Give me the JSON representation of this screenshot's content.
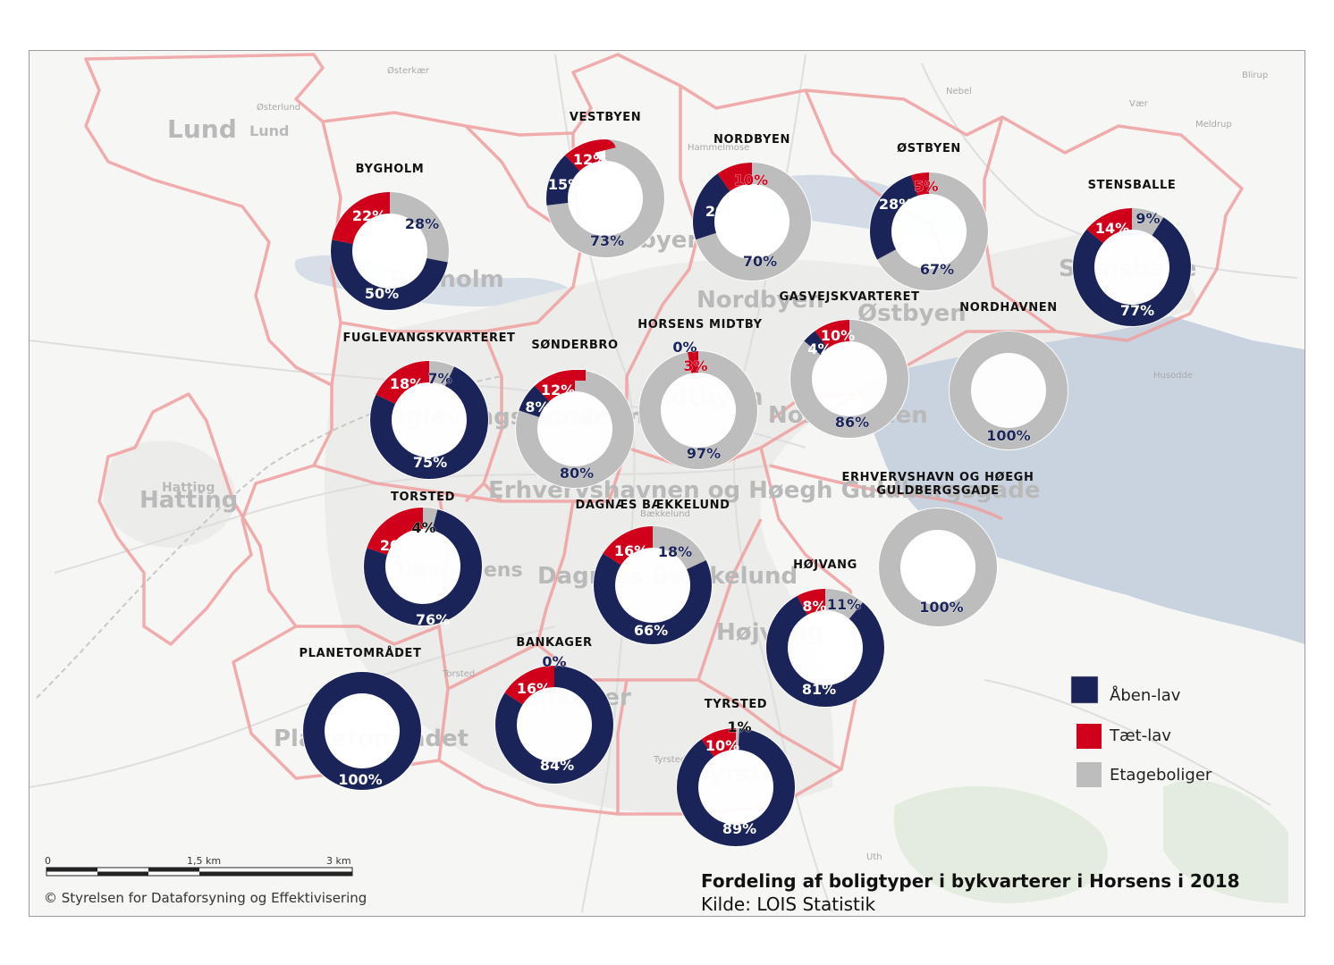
{
  "legend": [
    {
      "key": "aaben",
      "label": "Åben-lav",
      "color": "#1b2458"
    },
    {
      "key": "taet",
      "label": "Tæt-lav",
      "color": "#d0001b"
    },
    {
      "key": "etage",
      "label": "Etageboliger",
      "color": "#bdbdbd"
    }
  ],
  "title": "Fordeling af boligtyper i bykvarterer i Horsens i 2018",
  "source": "Kilde: LOIS Statistik",
  "copyright": "© Styrelsen for Dataforsyning og Effektivisering",
  "scale": {
    "labels": [
      "0",
      "1,5 km",
      "3 km"
    ]
  },
  "background_places": [
    {
      "name": "Lund",
      "size": "large"
    },
    {
      "name": "Lund",
      "size": "medium"
    },
    {
      "name": "Hatting",
      "size": "large"
    },
    {
      "name": "Hatting",
      "size": "small"
    },
    {
      "name": "Bygholm",
      "size": "large"
    },
    {
      "name": "Vestbyen",
      "size": "large"
    },
    {
      "name": "Nordbyen",
      "size": "large"
    },
    {
      "name": "Østbyen",
      "size": "large"
    },
    {
      "name": "Stensballe",
      "size": "large"
    },
    {
      "name": "Fuglevangskvarteret",
      "size": "large"
    },
    {
      "name": "Søndebro",
      "size": "large"
    },
    {
      "name": "Midtbyen",
      "size": "large"
    },
    {
      "name": "Nordhavnen",
      "size": "large"
    },
    {
      "name": "Erhvervshavnen og Høegh Guldbergsgade",
      "size": "large"
    },
    {
      "name": "Torstedlens",
      "size": "medium"
    },
    {
      "name": "Dagnæs Bækkelund",
      "size": "large"
    },
    {
      "name": "Højvang",
      "size": "large"
    },
    {
      "name": "Bankager",
      "size": "large"
    },
    {
      "name": "Planetområdet",
      "size": "large"
    },
    {
      "name": "Tyrsted",
      "size": "large"
    },
    {
      "name": "Østerkær",
      "size": "small"
    },
    {
      "name": "Østerlund",
      "size": "small"
    },
    {
      "name": "Nebel",
      "size": "small"
    },
    {
      "name": "Blirup",
      "size": "small"
    },
    {
      "name": "Vær",
      "size": "small"
    },
    {
      "name": "Meldrup",
      "size": "small"
    },
    {
      "name": "Hammelmose",
      "size": "small"
    },
    {
      "name": "Husodde",
      "size": "small"
    },
    {
      "name": "Uth",
      "size": "small"
    },
    {
      "name": "Torsted",
      "size": "small"
    },
    {
      "name": "Bækkelund",
      "size": "small"
    },
    {
      "name": "Tyrsted",
      "size": "small"
    }
  ],
  "districts": [
    {
      "name": "BYGHOLM",
      "aaben": 50,
      "taet": 22,
      "etage": 28,
      "labels": {
        "aaben": "50%",
        "taet": "22%",
        "etage": "28%"
      }
    },
    {
      "name": "VESTBYEN",
      "aaben": 15,
      "taet": 12,
      "etage": 73,
      "labels": {
        "aaben": "15%",
        "taet": "12%",
        "etage": "73%"
      }
    },
    {
      "name": "NORDBYEN",
      "aaben": 20,
      "taet": 10,
      "etage": 70,
      "labels": {
        "aaben": "20%",
        "taet": "10%",
        "etage": "70%"
      }
    },
    {
      "name": "ØSTBYEN",
      "aaben": 28,
      "taet": 5,
      "etage": 67,
      "labels": {
        "aaben": "28%",
        "taet": "5%",
        "etage": "67%"
      }
    },
    {
      "name": "STENSBALLE",
      "aaben": 77,
      "taet": 14,
      "etage": 9,
      "labels": {
        "aaben": "77%",
        "taet": "14%",
        "etage": "9%"
      }
    },
    {
      "name": "FUGLEVANGSKVARTERET",
      "aaben": 75,
      "taet": 18,
      "etage": 7,
      "labels": {
        "aaben": "75%",
        "taet": "18%",
        "etage": "7%"
      }
    },
    {
      "name": "SØNDERBRO",
      "aaben": 8,
      "taet": 12,
      "etage": 80,
      "labels": {
        "aaben": "8%",
        "taet": "12%",
        "etage": "80%"
      }
    },
    {
      "name": "HORSENS MIDTBY",
      "aaben": 0,
      "taet": 3,
      "etage": 97,
      "labels": {
        "aaben": "0%",
        "taet": "3%",
        "etage": "97%"
      }
    },
    {
      "name": "GASVEJSKVARTERET",
      "aaben": 4,
      "taet": 10,
      "etage": 86,
      "labels": {
        "aaben": "4%",
        "taet": "10%",
        "etage": "86%"
      }
    },
    {
      "name": "NORDHAVNEN",
      "aaben": 0,
      "taet": 0,
      "etage": 100,
      "labels": {
        "aaben": "",
        "taet": "",
        "etage": "100%"
      }
    },
    {
      "name": "TORSTED",
      "aaben": 76,
      "taet": 20,
      "etage": 4,
      "labels": {
        "aaben": "76%",
        "taet": "20%",
        "etage": "4%"
      }
    },
    {
      "name": "DAGNÆS BÆKKELUND",
      "aaben": 66,
      "taet": 16,
      "etage": 18,
      "labels": {
        "aaben": "66%",
        "taet": "16%",
        "etage": "18%"
      }
    },
    {
      "name": "ERHVERVSHAVN OG HØEGH GULDBERGSGADE",
      "aaben": 0,
      "taet": 0,
      "etage": 100,
      "labels": {
        "aaben": "",
        "taet": "",
        "etage": "100%"
      }
    },
    {
      "name": "HØJVANG",
      "aaben": 81,
      "taet": 8,
      "etage": 11,
      "labels": {
        "aaben": "81%",
        "taet": "8%",
        "etage": "11%"
      }
    },
    {
      "name": "PLANETOMRÅDET",
      "aaben": 100,
      "taet": 0,
      "etage": 0,
      "labels": {
        "aaben": "100%",
        "taet": "",
        "etage": ""
      }
    },
    {
      "name": "BANKAGER",
      "aaben": 84,
      "taet": 16,
      "etage": 0,
      "labels": {
        "aaben": "84%",
        "taet": "16%",
        "etage": "0%"
      }
    },
    {
      "name": "TYRSTED",
      "aaben": 89,
      "taet": 10,
      "etage": 1,
      "labels": {
        "aaben": "89%",
        "taet": "10%",
        "etage": "1%"
      }
    }
  ]
}
